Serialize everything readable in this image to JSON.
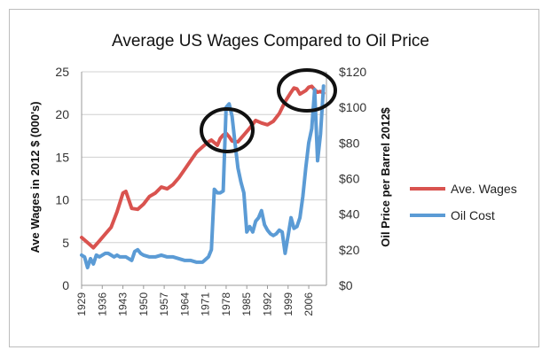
{
  "chart_data": {
    "type": "line",
    "title": "Average US Wages Compared to Oil Price",
    "ylabel": "Ave Wages in 2012 $ (000's)",
    "y2label": "Oil Price per Barrel 2012$",
    "ylim": [
      0,
      25
    ],
    "y2lim": [
      0,
      120
    ],
    "y_ticks": [
      "0",
      "5",
      "10",
      "15",
      "20",
      "25"
    ],
    "y2_ticks": [
      "$0",
      "$20",
      "$40",
      "$60",
      "$80",
      "$100",
      "$120"
    ],
    "x_ticks": [
      "1929",
      "1936",
      "1943",
      "1950",
      "1957",
      "1964",
      "1971",
      "1978",
      "1985",
      "1992",
      "1999",
      "2006"
    ],
    "xlim": [
      1929,
      2012
    ],
    "legend_position": "right",
    "grid": "horizontal",
    "series": [
      {
        "name": "Ave. Wages",
        "color": "#d9534f",
        "axis": "left",
        "x": [
          1929,
          1931,
          1933,
          1935,
          1937,
          1939,
          1941,
          1943,
          1944,
          1945,
          1946,
          1948,
          1950,
          1952,
          1954,
          1956,
          1958,
          1960,
          1962,
          1964,
          1966,
          1968,
          1970,
          1972,
          1973,
          1975,
          1976,
          1977,
          1978,
          1979,
          1980,
          1981,
          1982,
          1984,
          1986,
          1988,
          1990,
          1992,
          1994,
          1996,
          1998,
          2000,
          2001,
          2002,
          2003,
          2005,
          2006,
          2007,
          2008,
          2009,
          2010,
          2011
        ],
        "values": [
          5.6,
          5.0,
          4.4,
          5.2,
          6.0,
          6.8,
          8.6,
          10.8,
          11.0,
          10.0,
          9.0,
          8.9,
          9.5,
          10.4,
          10.8,
          11.5,
          11.3,
          11.8,
          12.6,
          13.6,
          14.6,
          15.6,
          16.2,
          16.8,
          17.0,
          16.4,
          17.2,
          17.6,
          17.8,
          17.4,
          16.9,
          16.8,
          16.8,
          17.6,
          18.4,
          19.3,
          19.0,
          18.8,
          19.2,
          20.1,
          21.5,
          22.6,
          23.1,
          23.0,
          22.4,
          22.8,
          23.2,
          23.3,
          22.9,
          22.6,
          22.7,
          22.5
        ]
      },
      {
        "name": "Oil Cost",
        "color": "#5b9bd5",
        "axis": "right",
        "x": [
          1929,
          1930,
          1931,
          1932,
          1933,
          1934,
          1935,
          1936,
          1937,
          1938,
          1939,
          1940,
          1941,
          1942,
          1943,
          1944,
          1945,
          1946,
          1947,
          1948,
          1949,
          1950,
          1952,
          1954,
          1956,
          1958,
          1960,
          1962,
          1964,
          1966,
          1968,
          1970,
          1972,
          1973,
          1974,
          1975,
          1976,
          1977,
          1978,
          1979,
          1980,
          1981,
          1982,
          1983,
          1984,
          1985,
          1986,
          1987,
          1988,
          1989,
          1990,
          1991,
          1992,
          1993,
          1994,
          1995,
          1996,
          1997,
          1998,
          1999,
          2000,
          2001,
          2002,
          2003,
          2004,
          2005,
          2006,
          2007,
          2008,
          2009,
          2010,
          2011
        ],
        "values": [
          17,
          16,
          10,
          15,
          12,
          17,
          16,
          17,
          18,
          18,
          17,
          16,
          17,
          16,
          16,
          16,
          15,
          14,
          19,
          20,
          18,
          17,
          16,
          16,
          17,
          16,
          16,
          15,
          14,
          14,
          13,
          13,
          16,
          20,
          54,
          52,
          52,
          53,
          100,
          102,
          95,
          80,
          66,
          58,
          52,
          30,
          33,
          30,
          36,
          38,
          42,
          34,
          31,
          29,
          28,
          29,
          31,
          30,
          18,
          28,
          38,
          32,
          33,
          38,
          50,
          66,
          80,
          88,
          110,
          70,
          85,
          112
        ]
      }
    ]
  }
}
